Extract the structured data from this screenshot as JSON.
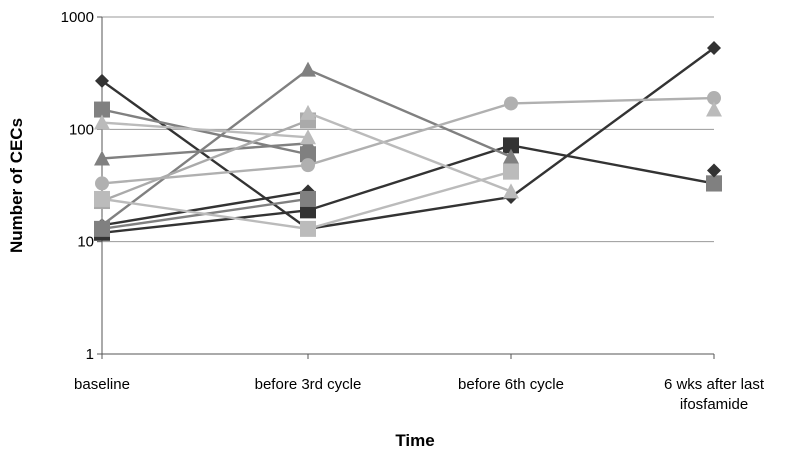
{
  "chart_data": {
    "type": "line",
    "title": "",
    "xlabel": "Time",
    "ylabel": "Number of CECs",
    "yscale": "log",
    "ylim": [
      1,
      1000
    ],
    "grid": "horizontal",
    "legend": "none",
    "yticks": [
      "1",
      "10",
      "100",
      "1000"
    ],
    "categories": [
      [
        "baseline"
      ],
      [
        "before 3rd cycle"
      ],
      [
        "before 6th cycle"
      ],
      [
        "6 wks after last",
        "ifosfamide"
      ]
    ],
    "series": [
      {
        "color": "#333333",
        "marker": "diamond",
        "values": [
          270,
          13,
          25,
          530
        ]
      },
      {
        "color": "#333333",
        "marker": "diamond",
        "values": [
          14,
          28,
          null,
          null
        ]
      },
      {
        "color": "#333333",
        "marker": "square",
        "values": [
          12,
          19,
          72,
          33
        ]
      },
      {
        "color": "#808080",
        "marker": "square",
        "values": [
          150,
          60,
          null,
          null
        ]
      },
      {
        "color": "#808080",
        "marker": "square",
        "values": [
          13,
          24,
          null,
          null
        ]
      },
      {
        "color": "#808080",
        "marker": "triangle",
        "values": [
          14,
          340,
          57,
          null
        ]
      },
      {
        "color": "#808080",
        "marker": "triangle",
        "values": [
          55,
          75,
          null,
          null
        ]
      },
      {
        "color": "#aaaaaa",
        "marker": "square",
        "values": [
          23,
          120,
          null,
          null
        ]
      },
      {
        "color": "#b0b0b0",
        "marker": "circle",
        "values": [
          33,
          48,
          170,
          190
        ]
      },
      {
        "color": "#bbbbbb",
        "marker": "triangle",
        "values": [
          115,
          85,
          null,
          null
        ]
      },
      {
        "color": "#bbbbbb",
        "marker": "square",
        "values": [
          24,
          13,
          42,
          null
        ]
      },
      {
        "color": "#bbbbbb",
        "marker": "triangle",
        "values": [
          null,
          140,
          28,
          null
        ]
      },
      {
        "color": "#bbbbbb",
        "marker": "triangle",
        "values": [
          null,
          null,
          null,
          150
        ]
      },
      {
        "color": "#808080",
        "marker": "square",
        "values": [
          null,
          null,
          null,
          33
        ]
      },
      {
        "color": "#333333",
        "marker": "diamond",
        "values": [
          null,
          null,
          null,
          43
        ]
      }
    ]
  }
}
